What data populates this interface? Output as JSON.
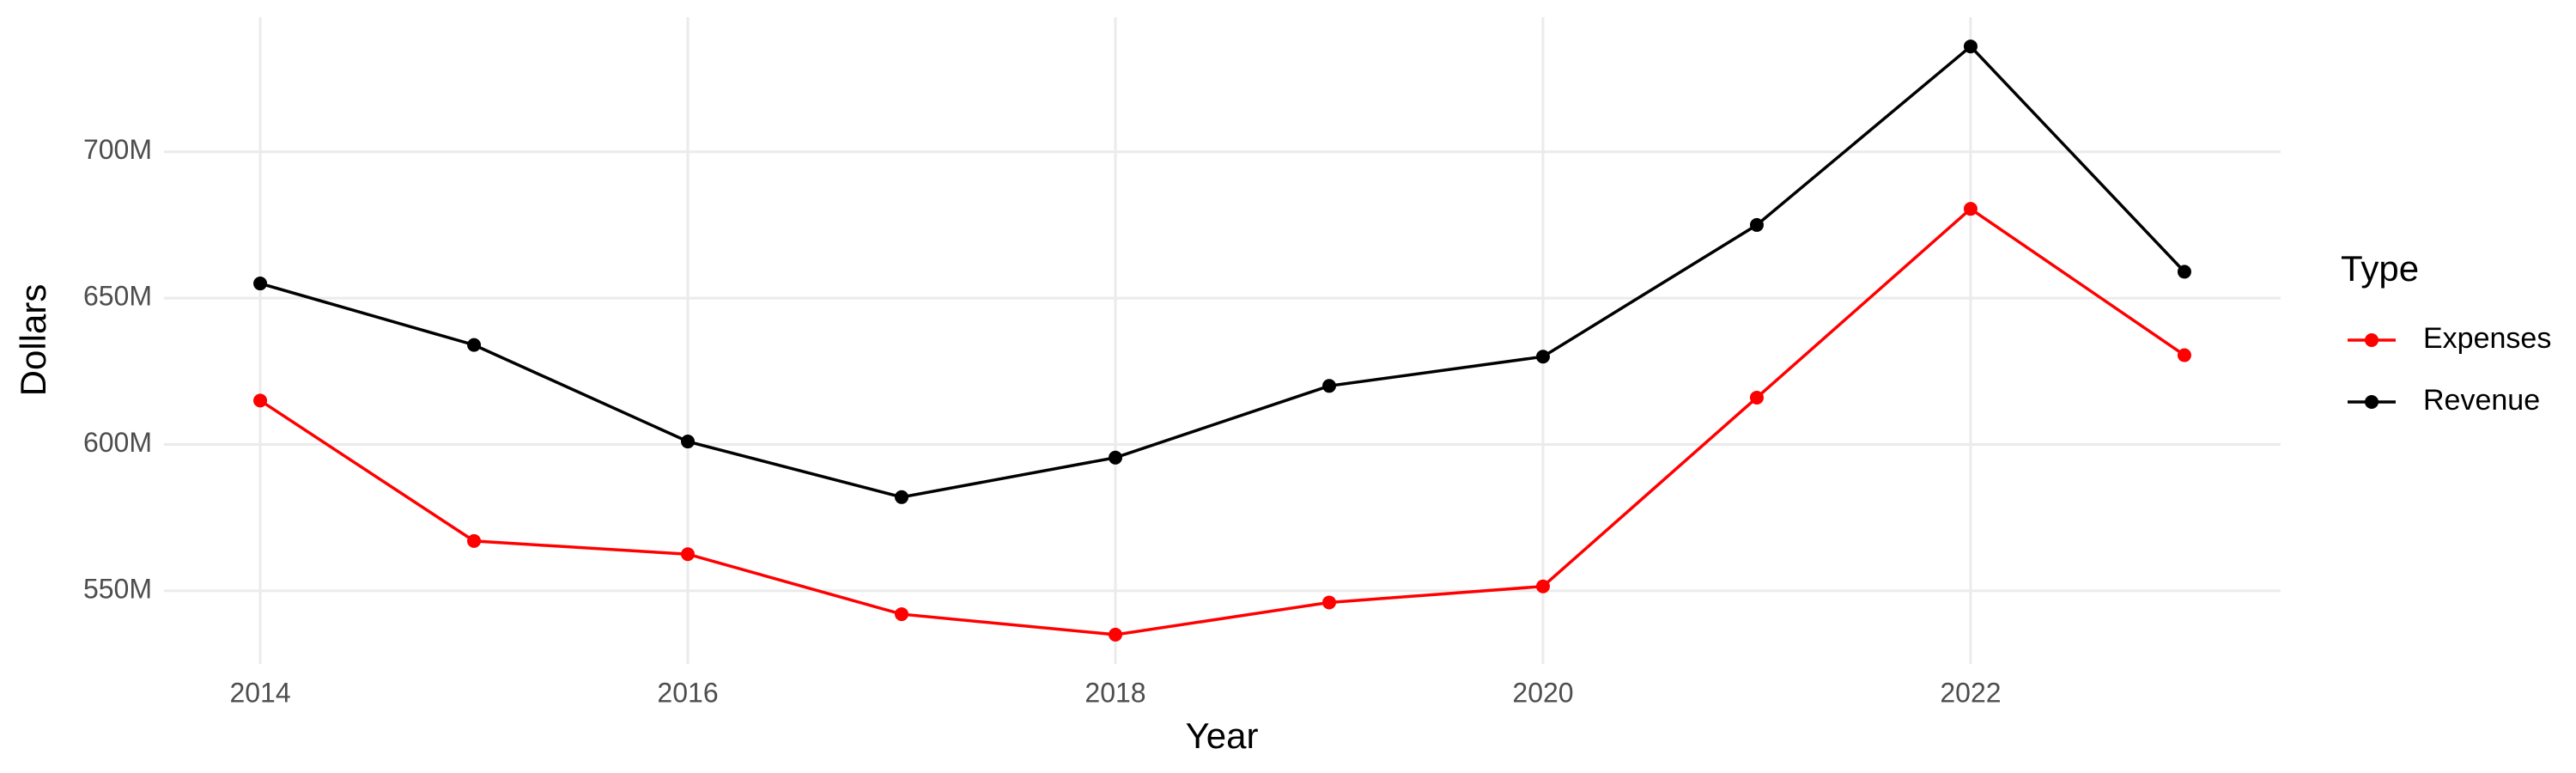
{
  "chart_data": {
    "type": "line",
    "x_label": "Year",
    "y_label": "Dollars",
    "legend_title": "Type",
    "x": [
      2014,
      2015,
      2016,
      2017,
      2018,
      2019,
      2020,
      2021,
      2022,
      2023
    ],
    "series": [
      {
        "name": "Expenses",
        "color": "#ff0000",
        "values": [
          615000000,
          567000000,
          562500000,
          542000000,
          535000000,
          546000000,
          551500000,
          616000000,
          680500000,
          630500000
        ]
      },
      {
        "name": "Revenue",
        "color": "#000000",
        "values": [
          655000000,
          634000000,
          601000000,
          582000000,
          595500000,
          620000000,
          630000000,
          675000000,
          736000000,
          659000000
        ]
      }
    ],
    "xlim": [
      2013.55,
      2023.45
    ],
    "xticks": [
      2014,
      2016,
      2018,
      2020,
      2022
    ],
    "ylim": [
      525000000,
      746000000
    ],
    "yticks": [
      {
        "value": 550000000,
        "label": "550M"
      },
      {
        "value": 600000000,
        "label": "600M"
      },
      {
        "value": 650000000,
        "label": "650M"
      },
      {
        "value": 700000000,
        "label": "700M"
      }
    ],
    "grid": true,
    "legend": "right"
  }
}
